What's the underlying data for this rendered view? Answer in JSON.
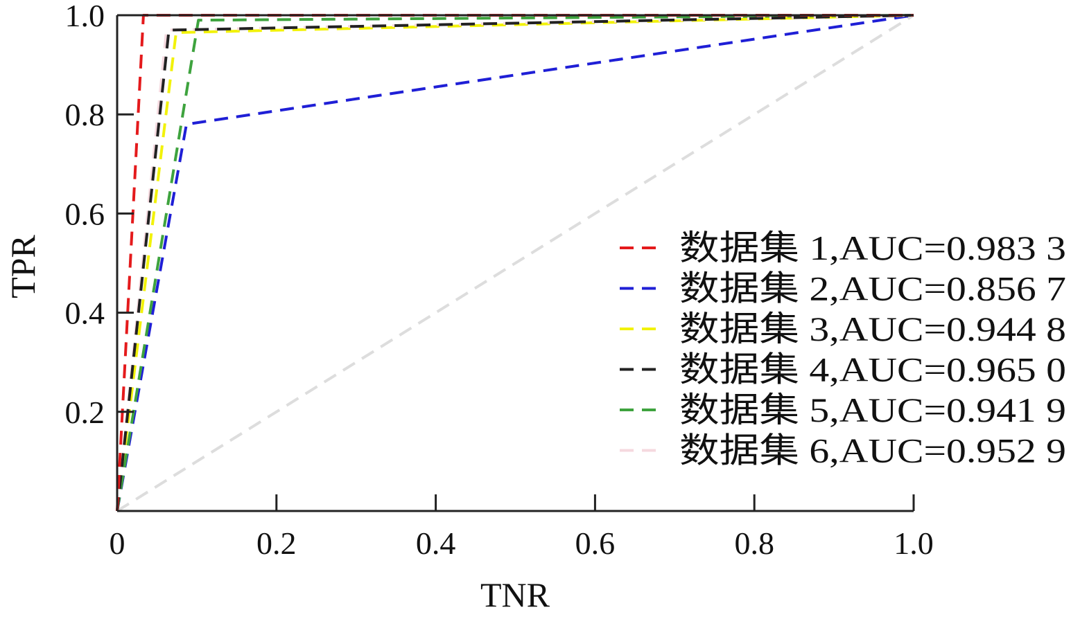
{
  "chart_data": {
    "type": "line",
    "title": "",
    "xlabel": "TNR",
    "ylabel": "TPR",
    "xlim": [
      0,
      1
    ],
    "ylim": [
      0,
      1
    ],
    "x_ticks": [
      0,
      0.2,
      0.4,
      0.6,
      0.8,
      1.0
    ],
    "x_tick_labels": [
      "0",
      "0.2",
      "0.4",
      "0.6",
      "0.8",
      "1.0"
    ],
    "y_ticks": [
      0.2,
      0.4,
      0.6,
      0.8,
      1.0
    ],
    "y_tick_labels": [
      "0.2",
      "0.4",
      "0.6",
      "0.8",
      "1.0"
    ],
    "grid": false,
    "legend_position": "right",
    "series": [
      {
        "name": "数据集 1,AUC=0.983 3",
        "color": "#e41a1c",
        "x": [
          0,
          0.033,
          1
        ],
        "y": [
          0,
          1.0,
          1.0
        ]
      },
      {
        "name": "数据集 2,AUC=0.856 7",
        "color": "#1f1fd6",
        "x": [
          0,
          0.087,
          1
        ],
        "y": [
          0,
          0.78,
          1.0
        ]
      },
      {
        "name": "数据集 3,AUC=0.944 8",
        "color": "#f2f20a",
        "x": [
          0,
          0.074,
          1
        ],
        "y": [
          0,
          0.965,
          1.0
        ]
      },
      {
        "name": "数据集 4,AUC=0.965 0",
        "color": "#222222",
        "x": [
          0,
          0.065,
          1
        ],
        "y": [
          0,
          0.97,
          1.0
        ]
      },
      {
        "name": "数据集 5,AUC=0.941 9",
        "color": "#3ea33e",
        "x": [
          0,
          0.102,
          1
        ],
        "y": [
          0,
          0.99,
          1.0
        ]
      },
      {
        "name": "数据集 6,AUC=0.952 9",
        "color": "#f5d9df",
        "x": [
          0,
          0.062,
          1
        ],
        "y": [
          0,
          0.97,
          1.0
        ]
      }
    ],
    "reference_line": {
      "color": "#dddddd",
      "x": [
        0,
        1
      ],
      "y": [
        0,
        1
      ]
    }
  }
}
